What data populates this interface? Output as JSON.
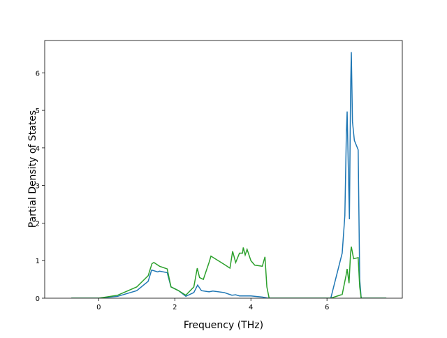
{
  "chart_data": {
    "type": "line",
    "xlabel": "Frequency (THz)",
    "ylabel": "Partial Density of States",
    "xlim": [
      -1.42,
      7.98
    ],
    "ylim": [
      0,
      6.86
    ],
    "xticks": [
      0,
      2,
      4,
      6
    ],
    "yticks": [
      0,
      1,
      2,
      3,
      4,
      5,
      6
    ],
    "series": [
      {
        "color": "#1f77b4",
        "x": [
          -0.72,
          0,
          0.5,
          1.0,
          1.3,
          1.39,
          1.55,
          1.6,
          1.8,
          1.9,
          2.1,
          2.29,
          2.5,
          2.6,
          2.7,
          2.9,
          3.0,
          3.3,
          3.5,
          3.6,
          3.7,
          4.0,
          4.3,
          4.45,
          6.1,
          6.2,
          6.4,
          6.47,
          6.51,
          6.53,
          6.59,
          6.62,
          6.64,
          6.67,
          6.72,
          6.82,
          6.86,
          6.9,
          7.56
        ],
        "values": [
          0,
          0,
          0.05,
          0.2,
          0.45,
          0.75,
          0.7,
          0.72,
          0.68,
          0.3,
          0.2,
          0.05,
          0.15,
          0.35,
          0.2,
          0.17,
          0.19,
          0.15,
          0.08,
          0.09,
          0.06,
          0.06,
          0.03,
          0,
          0,
          0.4,
          1.2,
          2.2,
          4.4,
          4.97,
          2.1,
          5.5,
          6.55,
          4.7,
          4.2,
          3.95,
          0.5,
          0,
          0
        ]
      },
      {
        "color": "#2ca02c",
        "x": [
          -0.72,
          0,
          0.5,
          1.0,
          1.3,
          1.4,
          1.45,
          1.6,
          1.8,
          1.9,
          2.1,
          2.29,
          2.5,
          2.59,
          2.65,
          2.75,
          2.8,
          2.9,
          2.95,
          3.3,
          3.45,
          3.52,
          3.6,
          3.7,
          3.78,
          3.8,
          3.85,
          3.9,
          4.0,
          4.1,
          4.3,
          4.37,
          4.42,
          4.48,
          6.1,
          6.4,
          6.5,
          6.53,
          6.58,
          6.62,
          6.64,
          6.7,
          6.82,
          6.86,
          6.9,
          7.56
        ],
        "values": [
          0,
          0,
          0.08,
          0.3,
          0.6,
          0.92,
          0.95,
          0.85,
          0.78,
          0.3,
          0.2,
          0.08,
          0.3,
          0.8,
          0.55,
          0.5,
          0.65,
          0.95,
          1.12,
          0.9,
          0.8,
          1.25,
          0.95,
          1.2,
          1.2,
          1.35,
          1.15,
          1.3,
          1.0,
          0.88,
          0.85,
          1.1,
          0.3,
          0,
          0,
          0.1,
          0.6,
          0.78,
          0.4,
          1.2,
          1.37,
          1.05,
          1.08,
          0.3,
          0,
          0
        ]
      }
    ]
  }
}
